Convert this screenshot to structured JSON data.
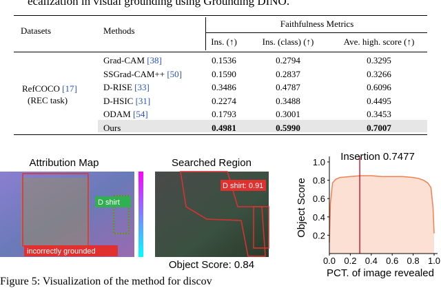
{
  "header": {
    "text": "ecalization in visual grounding using Grounding DINO."
  },
  "table": {
    "col_datasets": "Datasets",
    "col_methods": "Methods",
    "group": "Faithfulness Metrics",
    "metrics": [
      "Ins. (↑)",
      "Ins. (class) (↑)",
      "Ave. high. score (↑)"
    ],
    "dataset": {
      "name": "RefCOCO",
      "ref": "[17]",
      "task": "(REC task)"
    },
    "rows": [
      {
        "method": "Grad-CAM",
        "ref": "[38]",
        "values": [
          0.1536,
          0.2794,
          0.3295
        ]
      },
      {
        "method": "SSGrad-CAM++",
        "ref": "[50]",
        "values": [
          0.159,
          0.2837,
          0.3266
        ],
        "value_labels": [
          "0.1590",
          "0.2837",
          "0.3266"
        ]
      },
      {
        "method": "D-RISE",
        "ref": "[33]",
        "values": [
          0.3486,
          0.4787,
          0.6096
        ]
      },
      {
        "method": "D-HSIC",
        "ref": "[31]",
        "values": [
          0.2274,
          0.3488,
          0.4495
        ]
      },
      {
        "method": "ODAM",
        "ref": "[54]",
        "values": [
          0.1793,
          0.3001,
          0.3453
        ]
      },
      {
        "method": "Ours",
        "values": [
          0.4981,
          0.599,
          0.7007
        ],
        "value_labels": [
          "0.4981",
          "0.5990",
          "0.7007"
        ]
      }
    ]
  },
  "figure": {
    "panel1": {
      "title": "Attribution Map",
      "box_label": "D shirt",
      "note": "incorrectly grounded"
    },
    "panel2": {
      "title": "Searched Region",
      "box_label": "D shirt: 0.91",
      "caption": "Object Score: 0.84"
    },
    "chart": {
      "type": "line",
      "title": "Insertion 0.7477",
      "x_label": "PCT. of image revealed",
      "y_label": "Object Score",
      "xlim": [
        0,
        1
      ],
      "ylim": [
        0,
        1
      ],
      "xticks": [
        {
          "value": 0,
          "label": "0.0"
        },
        0.2,
        0.4,
        0.6,
        0.8,
        {
          "value": 1,
          "label": "1.0"
        }
      ],
      "yticks": [
        0.2,
        0.4,
        0.6,
        0.8,
        {
          "value": 1,
          "label": "1.0"
        }
      ],
      "marker_x": 0.29,
      "color": "#f08050",
      "fill": "#fde0d4",
      "x": [
        0,
        0.01,
        0.03,
        0.06,
        0.1,
        0.2,
        0.3,
        0.4,
        0.5,
        0.6,
        0.7,
        0.8,
        0.85,
        0.9,
        0.94,
        0.97,
        0.99,
        1.0
      ],
      "y": [
        0.12,
        0.55,
        0.77,
        0.81,
        0.83,
        0.84,
        0.85,
        0.85,
        0.84,
        0.84,
        0.84,
        0.83,
        0.82,
        0.8,
        0.77,
        0.72,
        0.5,
        0.22
      ]
    }
  },
  "caption": {
    "text": "Figure 5: Visualization of the method for discov"
  }
}
